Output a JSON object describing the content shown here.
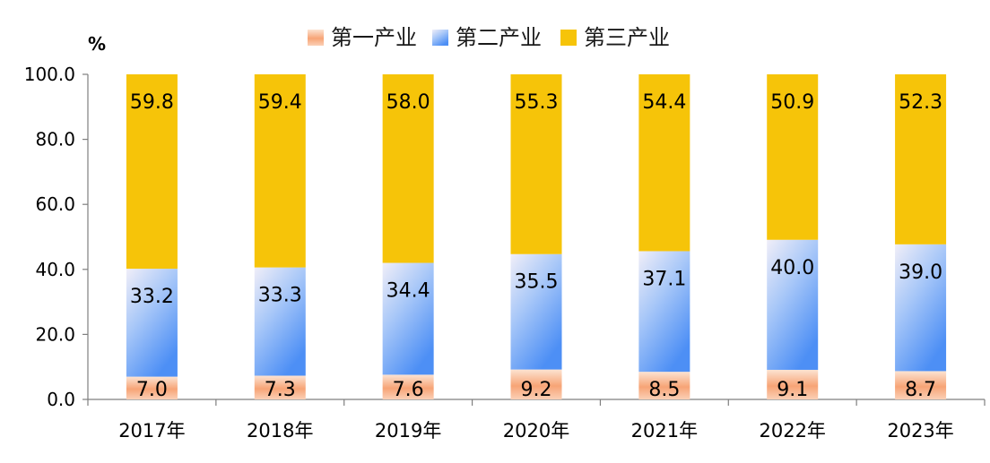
{
  "chart_data": {
    "type": "bar",
    "stacked": true,
    "unit_label": "%",
    "categories": [
      "2017年",
      "2018年",
      "2019年",
      "2020年",
      "2021年",
      "2022年",
      "2023年"
    ],
    "series": [
      {
        "name": "第一产业",
        "values": [
          7.0,
          7.3,
          7.6,
          9.2,
          8.5,
          9.1,
          8.7
        ],
        "color": "#F79B6B"
      },
      {
        "name": "第二产业",
        "values": [
          33.2,
          33.3,
          34.4,
          35.5,
          37.1,
          40.0,
          39.0
        ],
        "color": "#5B9CF5"
      },
      {
        "name": "第三产业",
        "values": [
          59.8,
          59.4,
          58.0,
          55.3,
          54.4,
          50.9,
          52.3
        ],
        "color": "#F6C409"
      }
    ],
    "ylim": [
      0,
      100
    ],
    "yticks": [
      "0.0",
      "20.0",
      "40.0",
      "60.0",
      "80.0",
      "100.0"
    ],
    "legend_position": "top",
    "grid": false
  }
}
